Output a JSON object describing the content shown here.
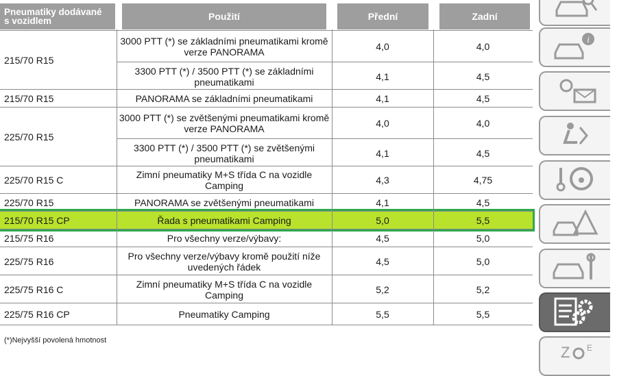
{
  "header": {
    "col1": "Pneumatiky dodávané s vozidlem",
    "col1_line1": "Pneumatiky dodávané",
    "col1_line2": "s vozidlem",
    "col2": "Použití",
    "col3": "Přední",
    "col4": "Zadní"
  },
  "groups": [
    {
      "tyre": "215/70 R15",
      "rows": [
        {
          "use": "3000 PTT (*) se základními pneumatikami kromě verze PANORAMA",
          "use1": "3000 PTT (*) se základními pneumatikami kromě",
          "use2": "verze PANORAMA",
          "front": "4,0",
          "rear": "4,0"
        },
        {
          "use": "3300 PTT (*) / 3500 PTT (*) se základními pneumatikami",
          "use1": "3300 PTT (*) / 3500 PTT (*) se základními",
          "use2": "pneumatikami",
          "front": "4,1",
          "rear": "4,5"
        }
      ]
    },
    {
      "tyre": "215/70 R15",
      "rows": [
        {
          "use": "PANORAMA se základními pneumatikami",
          "use1": "PANORAMA se základními pneumatikami",
          "use2": "",
          "front": "4,1",
          "rear": "4,5"
        }
      ]
    },
    {
      "tyre": "225/70 R15",
      "rows": [
        {
          "use": "3000 PTT (*) se zvětšenými pneumatikami kromě verze PANORAMA",
          "use1": "3000 PTT (*) se zvětšenými pneumatikami kromě",
          "use2": "verze PANORAMA",
          "front": "4,0",
          "rear": "4,0"
        },
        {
          "use": "3300 PTT (*) / 3500 PTT (*) se zvětšenými pneumatikami",
          "use1": "3300 PTT (*) / 3500 PTT (*) se zvětšenými",
          "use2": "pneumatikami",
          "front": "4,1",
          "rear": "4,5"
        }
      ]
    },
    {
      "tyre": "225/70 R15 C",
      "rows": [
        {
          "use": "Zimní pneumatiky M+S třída C na vozidle Camping",
          "use1": "Zimní pneumatiky M+S třída C na vozidle",
          "use2": "Camping",
          "front": "4,3",
          "rear": "4,75"
        }
      ]
    },
    {
      "tyre": "225/70 R15",
      "rows": [
        {
          "use": "PANORAMA se zvětšenými pneumatikami",
          "use1": "PANORAMA se zvětšenými pneumatikami",
          "use2": "",
          "front": "4,1",
          "rear": "4,5"
        }
      ]
    },
    {
      "tyre": "215/70 R15 CP",
      "highlight": true,
      "rows": [
        {
          "use": "Řada s pneumatikami Camping",
          "use1": "Řada s pneumatikami Camping",
          "use2": "",
          "front": "5,0",
          "rear": "5,5"
        }
      ]
    },
    {
      "tyre": "215/75 R16",
      "rows": [
        {
          "use": "Pro všechny verze/výbavy:",
          "use1": "Pro všechny verze/výbavy:",
          "use2": "",
          "front": "4,5",
          "rear": "5,0"
        }
      ]
    },
    {
      "tyre": "225/75 R16",
      "rows": [
        {
          "use": "Pro všechny verze/výbavy kromě použití níže uvedených řádek",
          "use1": "Pro všechny verze/výbavy kromě použití níže",
          "use2": "uvedených řádek",
          "front": "4,5",
          "rear": "5,0"
        }
      ]
    },
    {
      "tyre": "225/75 R16 C",
      "rows": [
        {
          "use": "Zimní pneumatiky M+S třída C na vozidle Camping",
          "use1": "Zimní pneumatiky M+S třída C na vozidle",
          "use2": "Camping",
          "front": "5,2",
          "rear": "5,2"
        }
      ]
    },
    {
      "tyre": "225/75 R16 CP",
      "rows": [
        {
          "use": "Pneumatiky Camping",
          "use1": "Pneumatiky Camping",
          "use2": "",
          "front": "5,5",
          "rear": "5,5"
        }
      ]
    }
  ],
  "footnote": "(*)Nejvyšší povolená hmotnost",
  "tabs": [
    {
      "icon": "car-search-icon"
    },
    {
      "icon": "car-info-icon"
    },
    {
      "icon": "light-message-icon"
    },
    {
      "icon": "seat-airbag-icon"
    },
    {
      "icon": "key-steering-wheel-icon"
    },
    {
      "icon": "car-warning-icon"
    },
    {
      "icon": "car-wrench-icon"
    },
    {
      "icon": "list-gear-icon",
      "active": true
    },
    {
      "icon": "alphabet-index-icon"
    }
  ],
  "colors": {
    "header": "#9e9e9e",
    "highlight": "#b9e22c",
    "highlight_border": "#2fa84f",
    "active_tab": "#6b6b6b"
  }
}
